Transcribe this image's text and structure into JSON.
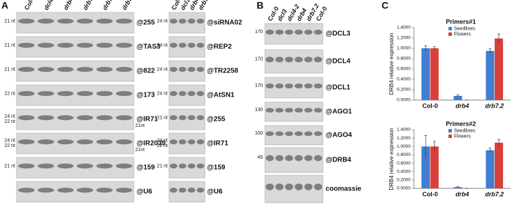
{
  "panel_a": {
    "label": "A",
    "left": {
      "lanes": [
        "Col-0",
        "dcl4-2",
        "drb4",
        "drb7.2",
        "drb7.2",
        "drb7.2"
      ],
      "rows": [
        {
          "probe": "@255",
          "sizes": [
            "21 nt"
          ]
        },
        {
          "probe": "@TAS3",
          "sizes": [
            "21 nt"
          ]
        },
        {
          "probe": "@822",
          "sizes": [
            "21 nt"
          ]
        },
        {
          "probe": "@173",
          "sizes": [
            "22 nt"
          ]
        },
        {
          "probe": "@IR71",
          "sizes": [
            "24 nt",
            "22 nt"
          ],
          "right_size": "21nt"
        },
        {
          "probe": "@IR2039",
          "sizes": [
            "24 nt",
            "22 nt"
          ],
          "right_size": "21nt"
        },
        {
          "probe": "@159",
          "sizes": [
            "21 nt"
          ]
        },
        {
          "probe": "@U6"
        }
      ]
    },
    "right": {
      "lanes": [
        "Col-0",
        "dcl3",
        "drb4",
        "drb7.2"
      ],
      "rows": [
        {
          "probe": "@siRNA02",
          "sizes": [
            "24 nt"
          ]
        },
        {
          "probe": "@REP2",
          "sizes": [
            "24 nt"
          ]
        },
        {
          "probe": "@TR2258",
          "sizes": [
            "24 nt"
          ]
        },
        {
          "probe": "@AtSN1",
          "sizes": [
            "24 nt"
          ]
        },
        {
          "probe": "@255",
          "sizes": [
            "21 nt"
          ]
        },
        {
          "probe": "@IR71",
          "sizes": [
            "24 nt",
            "22 nt"
          ]
        },
        {
          "probe": "@159",
          "sizes": [
            "21 nt"
          ]
        },
        {
          "probe": "@U6"
        }
      ]
    }
  },
  "panel_b": {
    "label": "B",
    "lanes": [
      "Col-0",
      "dcl3",
      "dcl4-2",
      "drb4",
      "drb7.2",
      "Col-0"
    ],
    "rows": [
      {
        "probe": "@DCL3",
        "marker": "170"
      },
      {
        "probe": "@DCL4",
        "marker": "170"
      },
      {
        "probe": "@DCL1",
        "marker": "170"
      },
      {
        "probe": "@AGO1",
        "marker": "130"
      },
      {
        "probe": "@AGO4",
        "marker": "100"
      },
      {
        "probe": "@DRB4",
        "marker": "45"
      },
      {
        "probe": "coomassie"
      }
    ]
  },
  "panel_c": {
    "label": "C"
  },
  "chart_data": [
    {
      "type": "bar",
      "title": "Primers#1",
      "ylabel": "DRB4 relative expression",
      "categories": [
        "Col-0",
        "drb4",
        "drb7.2"
      ],
      "series": [
        {
          "name": "Seedlines",
          "color": "#3f7fd1",
          "values": [
            1.0,
            0.08,
            0.95
          ],
          "errors": [
            0.05,
            0.02,
            0.04
          ]
        },
        {
          "name": "Flowers",
          "color": "#d9403a",
          "values": [
            1.0,
            0.0,
            1.19
          ],
          "errors": [
            0.03,
            0.0,
            0.09
          ]
        }
      ],
      "ylim": [
        0,
        1.4
      ],
      "yticks": [
        {
          "value": 0,
          "label": "0.0000"
        },
        {
          "value": 0.2,
          "label": "0.2000"
        },
        {
          "value": 0.4,
          "label": "0.4000"
        },
        {
          "value": 0.6,
          "label": "0.6000"
        },
        {
          "value": 0.8,
          "label": "0.8000"
        },
        {
          "value": 1.0,
          "label": "1.0000"
        },
        {
          "value": 1.2,
          "label": "1.2000"
        },
        {
          "value": 1.4,
          "label": "1.4000"
        }
      ]
    },
    {
      "type": "bar",
      "title": "Primers#2",
      "ylabel": "DRB4 relative expression",
      "categories": [
        "Col-0",
        "drb4",
        "drb7.2"
      ],
      "series": [
        {
          "name": "Seedlines",
          "color": "#3f7fd1",
          "values": [
            1.0,
            0.03,
            0.91
          ],
          "errors": [
            0.26,
            0.01,
            0.05
          ]
        },
        {
          "name": "Flowers",
          "color": "#d9403a",
          "values": [
            1.0,
            0.0,
            1.09
          ],
          "errors": [
            0.12,
            0.0,
            0.08
          ]
        }
      ],
      "ylim": [
        0,
        1.4
      ],
      "yticks": [
        {
          "value": 0,
          "label": "0.0000"
        },
        {
          "value": 0.2,
          "label": "0.2000"
        },
        {
          "value": 0.4,
          "label": "0.4000"
        },
        {
          "value": 0.6,
          "label": "0.6000"
        },
        {
          "value": 0.8,
          "label": "0.8000"
        },
        {
          "value": 1.0,
          "label": "1.0000"
        },
        {
          "value": 1.2,
          "label": "1.2000"
        },
        {
          "value": 1.4,
          "label": "1.4000"
        }
      ]
    }
  ]
}
